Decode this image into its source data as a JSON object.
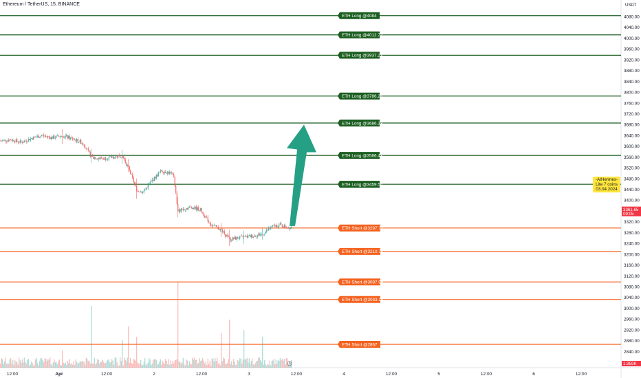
{
  "header": {
    "title": "Ethereum / TetherUS, 15, BINANCE",
    "currency": "USDT"
  },
  "annotation": {
    "lines": [
      "-AIHermes-",
      "Lite 7 coins",
      "03.04.2024"
    ]
  },
  "price_tag": {
    "price": "3361.65",
    "countdown": "09:05",
    "color": "#f23645"
  },
  "volume_tag": {
    "value": "1.959K",
    "color": "#f23645"
  },
  "colors": {
    "long": "#1b5e20",
    "short": "#f4621f",
    "arrow": "#26a085",
    "up": "#26a69a",
    "down": "#ef5350"
  },
  "chart_data": {
    "type": "candlestick",
    "title": "Ethereum / TetherUS, 15, BINANCE",
    "y_axis": {
      "unit": "USDT",
      "ticks": [
        4080,
        4040,
        4000,
        3960,
        3920,
        3880,
        3840,
        3800,
        3760,
        3720,
        3680,
        3640,
        3600,
        3560,
        3520,
        3480,
        3440,
        3400,
        3360,
        3320,
        3280,
        3240,
        3200,
        3160,
        3120,
        3080,
        3040,
        3000,
        2960,
        2920,
        2880,
        2840
      ],
      "tick_labels": [
        "4080.00",
        "4040.00",
        "4000.00",
        "3960.00",
        "3920.00",
        "3880.00",
        "3840.00",
        "3800.00",
        "3760.00",
        "3720.00",
        "3680.00",
        "3640.00",
        "3600.00",
        "3560.00",
        "3520.00",
        "3480.00",
        "3440.00",
        "3400.00",
        "3360.00",
        "3320.00",
        "3280.00",
        "3240.00",
        "3200.00",
        "3160.00",
        "3120.00",
        "3080.00",
        "3040.00",
        "3000.00",
        "2960.00",
        "2920.00",
        "2880.00",
        "2840.00"
      ],
      "range": [
        2830,
        4110
      ]
    },
    "x_axis": {
      "tick_labels": [
        "12:00",
        "Apr",
        "12:00",
        "2",
        "12:00",
        "3",
        "12:00",
        "4",
        "12:00",
        "5",
        "12:00",
        "6",
        "12:00"
      ],
      "bold": [
        false,
        true,
        false,
        false,
        false,
        false,
        false,
        false,
        false,
        false,
        false,
        false,
        false
      ]
    },
    "levels": [
      {
        "label": "ETH Long @4084",
        "price": 4084,
        "kind": "long"
      },
      {
        "label": "ETH Long @4012.72",
        "price": 4012.72,
        "kind": "long"
      },
      {
        "label": "ETH Long @3937.23",
        "price": 3937.23,
        "kind": "long"
      },
      {
        "label": "ETH Long @3786.24",
        "price": 3786.24,
        "kind": "long"
      },
      {
        "label": "ETH Long @3686.33",
        "price": 3686.33,
        "kind": "long"
      },
      {
        "label": "ETH Long @3566.43",
        "price": 3566.43,
        "kind": "long"
      },
      {
        "label": "ETH Long @3459.54",
        "price": 3459.54,
        "kind": "long"
      },
      {
        "label": "ETH Short @3297.77",
        "price": 3297.77,
        "kind": "short"
      },
      {
        "label": "ETH Short @3210.78",
        "price": 3210.78,
        "kind": "short"
      },
      {
        "label": "ETH Short @3097.96",
        "price": 3097.96,
        "kind": "short"
      },
      {
        "label": "ETH Short @3033.18",
        "price": 3033.18,
        "kind": "short"
      },
      {
        "label": "ETH Short @2867",
        "price": 2867,
        "kind": "short"
      }
    ],
    "price_path": [
      {
        "bar": 0,
        "price": 3620
      },
      {
        "bar": 10,
        "price": 3625
      },
      {
        "bar": 20,
        "price": 3615
      },
      {
        "bar": 30,
        "price": 3630
      },
      {
        "bar": 40,
        "price": 3640
      },
      {
        "bar": 50,
        "price": 3632
      },
      {
        "bar": 60,
        "price": 3640
      },
      {
        "bar": 72,
        "price": 3625
      },
      {
        "bar": 80,
        "price": 3612
      },
      {
        "bar": 88,
        "price": 3560
      },
      {
        "bar": 100,
        "price": 3555
      },
      {
        "bar": 110,
        "price": 3560
      },
      {
        "bar": 118,
        "price": 3565
      },
      {
        "bar": 124,
        "price": 3520
      },
      {
        "bar": 132,
        "price": 3440
      },
      {
        "bar": 138,
        "price": 3430
      },
      {
        "bar": 146,
        "price": 3470
      },
      {
        "bar": 156,
        "price": 3510
      },
      {
        "bar": 164,
        "price": 3502
      },
      {
        "bar": 168,
        "price": 3490
      },
      {
        "bar": 172,
        "price": 3360
      },
      {
        "bar": 178,
        "price": 3370
      },
      {
        "bar": 186,
        "price": 3375
      },
      {
        "bar": 194,
        "price": 3365
      },
      {
        "bar": 204,
        "price": 3310
      },
      {
        "bar": 214,
        "price": 3290
      },
      {
        "bar": 222,
        "price": 3255
      },
      {
        "bar": 232,
        "price": 3262
      },
      {
        "bar": 244,
        "price": 3268
      },
      {
        "bar": 254,
        "price": 3275
      },
      {
        "bar": 262,
        "price": 3300
      },
      {
        "bar": 270,
        "price": 3310
      },
      {
        "bar": 278,
        "price": 3300
      },
      {
        "bar": 282,
        "price": 3302
      }
    ],
    "bars": 283,
    "last_price": 3361.65,
    "arrow": {
      "direction": "up",
      "from_bar": 282,
      "from_price": 3300,
      "to_price": 3680
    }
  }
}
